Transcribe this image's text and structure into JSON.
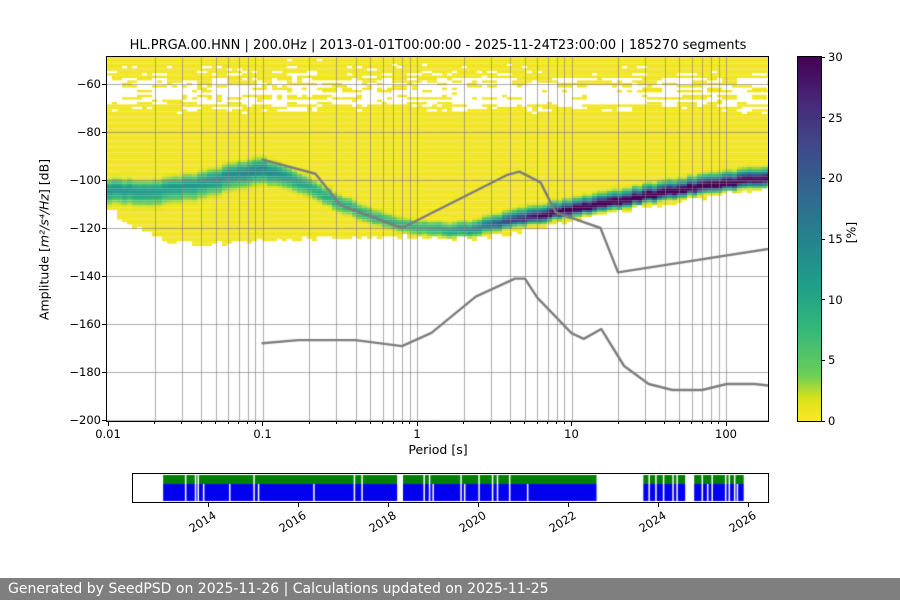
{
  "title": "HL.PRGA.00.HNN | 200.0Hz | 2013-01-01T00:00:00 - 2025-11-24T23:00:00 | 185270 segments",
  "footer": {
    "text": "Generated by SeedPSD on 2025-11-26 | Calculations updated on 2025-11-25",
    "background": "#7f7f7f",
    "text_color": "#ffffff"
  },
  "chart_data": {
    "type": "heatmap",
    "title": "HL.PRGA.00.HNN | 200.0Hz | 2013-01-01T00:00:00 - 2025-11-24T23:00:00 | 185270 segments",
    "x_axis": {
      "label": "Period [s]",
      "scale": "log",
      "min": 0.01,
      "max": 187,
      "ticks": [
        {
          "value": 0.01,
          "label": "0.01"
        },
        {
          "value": 0.1,
          "label": "0.1"
        },
        {
          "value": 1,
          "label": "1"
        },
        {
          "value": 10,
          "label": "10"
        },
        {
          "value": 100,
          "label": "100"
        }
      ]
    },
    "y_axis": {
      "label_prefix": "Amplitude [",
      "label_units": "m²/s⁴/Hz",
      "label_suffix": "] [dB]",
      "min": -200.4,
      "max": -48.8,
      "ticks": [
        {
          "value": -60,
          "label": "−60"
        },
        {
          "value": -80,
          "label": "−80"
        },
        {
          "value": -100,
          "label": "−100"
        },
        {
          "value": -120,
          "label": "−120"
        },
        {
          "value": -140,
          "label": "−140"
        },
        {
          "value": -160,
          "label": "−160"
        },
        {
          "value": -180,
          "label": "−180"
        },
        {
          "value": -200,
          "label": "−200"
        }
      ]
    },
    "colorbar": {
      "label": "[%]",
      "min": 0,
      "max": 30,
      "ticks": [
        {
          "value": 0,
          "label": "0"
        },
        {
          "value": 5,
          "label": "5"
        },
        {
          "value": 10,
          "label": "10"
        },
        {
          "value": 15,
          "label": "15"
        },
        {
          "value": 20,
          "label": "20"
        },
        {
          "value": 25,
          "label": "25"
        },
        {
          "value": 30,
          "label": "30"
        }
      ],
      "colormap": "viridis reversed (0% = yellow, 30% = dark purple)",
      "anchors_t_rgb": [
        [
          0,
          68,
          1,
          84
        ],
        [
          0.125,
          72,
          40,
          120
        ],
        [
          0.25,
          62,
          74,
          137
        ],
        [
          0.375,
          49,
          104,
          142
        ],
        [
          0.5,
          38,
          130,
          142
        ],
        [
          0.625,
          31,
          158,
          137
        ],
        [
          0.75,
          53,
          183,
          121
        ],
        [
          0.875,
          109,
          205,
          89
        ],
        [
          0.9375,
          216,
          226,
          25
        ],
        [
          1,
          253,
          231,
          37
        ]
      ]
    },
    "ppsd": {
      "base_percent": 0.6,
      "mode_curve_log10p_db": [
        [
          -2.01,
          -104
        ],
        [
          -1.7,
          -104.6
        ],
        [
          -1.4,
          -101.5
        ],
        [
          -1.15,
          -97.2
        ],
        [
          -1.0,
          -95.6
        ],
        [
          -0.85,
          -98.5
        ],
        [
          -0.7,
          -103
        ],
        [
          -0.5,
          -109.5
        ],
        [
          -0.3,
          -115
        ],
        [
          -0.15,
          -118
        ],
        [
          0,
          -119.8
        ],
        [
          0.2,
          -121
        ],
        [
          0.35,
          -120.6
        ],
        [
          0.5,
          -118.8
        ],
        [
          0.7,
          -116.2
        ],
        [
          0.85,
          -114.4
        ],
        [
          1.0,
          -112.6
        ],
        [
          1.2,
          -110.2
        ],
        [
          1.4,
          -107.9
        ],
        [
          1.6,
          -105.6
        ],
        [
          1.8,
          -103.4
        ],
        [
          2.0,
          -101.6
        ],
        [
          2.27,
          -99.6
        ]
      ],
      "peak_percent": [
        [
          -2.01,
          13
        ],
        [
          -1.7,
          12
        ],
        [
          -1.4,
          12
        ],
        [
          -1.0,
          15
        ],
        [
          -0.85,
          12
        ],
        [
          -0.7,
          9.5
        ],
        [
          -0.5,
          9
        ],
        [
          -0.3,
          8
        ],
        [
          -0.15,
          7.5
        ],
        [
          0,
          8
        ],
        [
          0.2,
          10
        ],
        [
          0.35,
          13
        ],
        [
          0.5,
          20
        ],
        [
          0.7,
          27
        ],
        [
          0.85,
          32
        ],
        [
          1.0,
          34
        ],
        [
          2.0,
          34
        ],
        [
          2.27,
          32
        ]
      ],
      "sigma_up_db": [
        [
          -2.01,
          2.4
        ],
        [
          -1.0,
          2.6
        ],
        [
          -0.7,
          2.2
        ],
        [
          0,
          1.8
        ],
        [
          0.35,
          2.0
        ],
        [
          0.7,
          2.2
        ],
        [
          2.27,
          2.4
        ]
      ],
      "sigma_down_db": [
        [
          -2.01,
          3.2
        ],
        [
          -1.4,
          3.6
        ],
        [
          -1.0,
          3.2
        ],
        [
          -0.7,
          2.4
        ],
        [
          0,
          1.8
        ],
        [
          0.35,
          1.6
        ],
        [
          0.7,
          1.4
        ],
        [
          2.27,
          1.5
        ]
      ],
      "bottom_cutoff_db": [
        [
          -2.01,
          -111
        ],
        [
          -1.85,
          -119
        ],
        [
          -1.6,
          -126
        ],
        [
          -1.3,
          -127
        ],
        [
          -1.0,
          -125.5
        ],
        [
          -0.6,
          -124.5
        ],
        [
          -0.3,
          -124
        ],
        [
          -0.1,
          -123.5
        ],
        [
          0.1,
          -124.5
        ],
        [
          0.3,
          -124.5
        ],
        [
          0.5,
          -123.5
        ],
        [
          0.7,
          -121
        ],
        [
          1.0,
          -117.5
        ],
        [
          1.3,
          -113.8
        ],
        [
          1.6,
          -110
        ],
        [
          1.9,
          -106.5
        ],
        [
          2.27,
          -104.3
        ]
      ],
      "speckle_white_prob_db": [
        [
          -74,
          0
        ],
        [
          -72,
          0.12
        ],
        [
          -70,
          0.3
        ],
        [
          -68,
          0.52
        ],
        [
          -66,
          0.66
        ],
        [
          -63,
          0.66
        ],
        [
          -60,
          0.5
        ],
        [
          -58,
          0.38
        ],
        [
          -56,
          0.3
        ],
        [
          -53,
          0.18
        ],
        [
          -51,
          0.08
        ],
        [
          -49,
          0.03
        ]
      ]
    },
    "noise_models": {
      "color": "#7d7d7d",
      "nhnm_period_db": [
        [
          0.1,
          -91.5
        ],
        [
          0.22,
          -97.4
        ],
        [
          0.32,
          -110.5
        ],
        [
          0.8,
          -120.0
        ],
        [
          3.8,
          -98.0
        ],
        [
          4.6,
          -96.5
        ],
        [
          6.3,
          -101.0
        ],
        [
          7.9,
          -113.5
        ],
        [
          15.4,
          -120.0
        ],
        [
          20.0,
          -138.5
        ],
        [
          354.8,
          -126.0
        ]
      ],
      "nlnm_period_db": [
        [
          0.1,
          -168.0
        ],
        [
          0.17,
          -166.7
        ],
        [
          0.4,
          -166.7
        ],
        [
          0.8,
          -169.2
        ],
        [
          1.24,
          -163.7
        ],
        [
          2.4,
          -148.6
        ],
        [
          4.3,
          -141.1
        ],
        [
          5.0,
          -141.1
        ],
        [
          6.0,
          -149.0
        ],
        [
          10.0,
          -163.8
        ],
        [
          12.0,
          -166.2
        ],
        [
          15.6,
          -162.1
        ],
        [
          21.9,
          -177.5
        ],
        [
          31.6,
          -185.0
        ],
        [
          45.0,
          -187.5
        ],
        [
          70.0,
          -187.5
        ],
        [
          101.0,
          -185.0
        ],
        [
          154.0,
          -185.0
        ],
        [
          328.0,
          -187.5
        ]
      ]
    },
    "timeline": {
      "x_min": 2012.33,
      "x_max": 2026.44,
      "ticks": [
        2014,
        2016,
        2018,
        2020,
        2022,
        2024,
        2026
      ],
      "green_color": "#008000",
      "blue_color": "#0000ee",
      "coverage": [
        [
          2013.0,
          2022.63
        ],
        [
          2023.67,
          2025.9
        ]
      ],
      "gaps_both": [
        2013.5,
        2013.72,
        2013.78,
        2015.02,
        2017.25,
        2017.42,
        2018.8,
        2018.92,
        2019.62,
        2020.02,
        2020.32,
        2020.43,
        2020.7,
        2023.8,
        2023.95,
        2024.12,
        2024.33,
        2024.42,
        2024.98,
        2025.2,
        2025.5,
        2025.58,
        2025.7
      ],
      "gaps_both_wide": [
        [
          2018.2,
          2018.33
        ],
        [
          2024.6,
          2024.8
        ]
      ],
      "gaps_blue": [
        2013.9,
        2014.48,
        2015.12,
        2016.35,
        2019.0,
        2019.7,
        2021.1,
        2025.1,
        2025.76
      ]
    }
  }
}
